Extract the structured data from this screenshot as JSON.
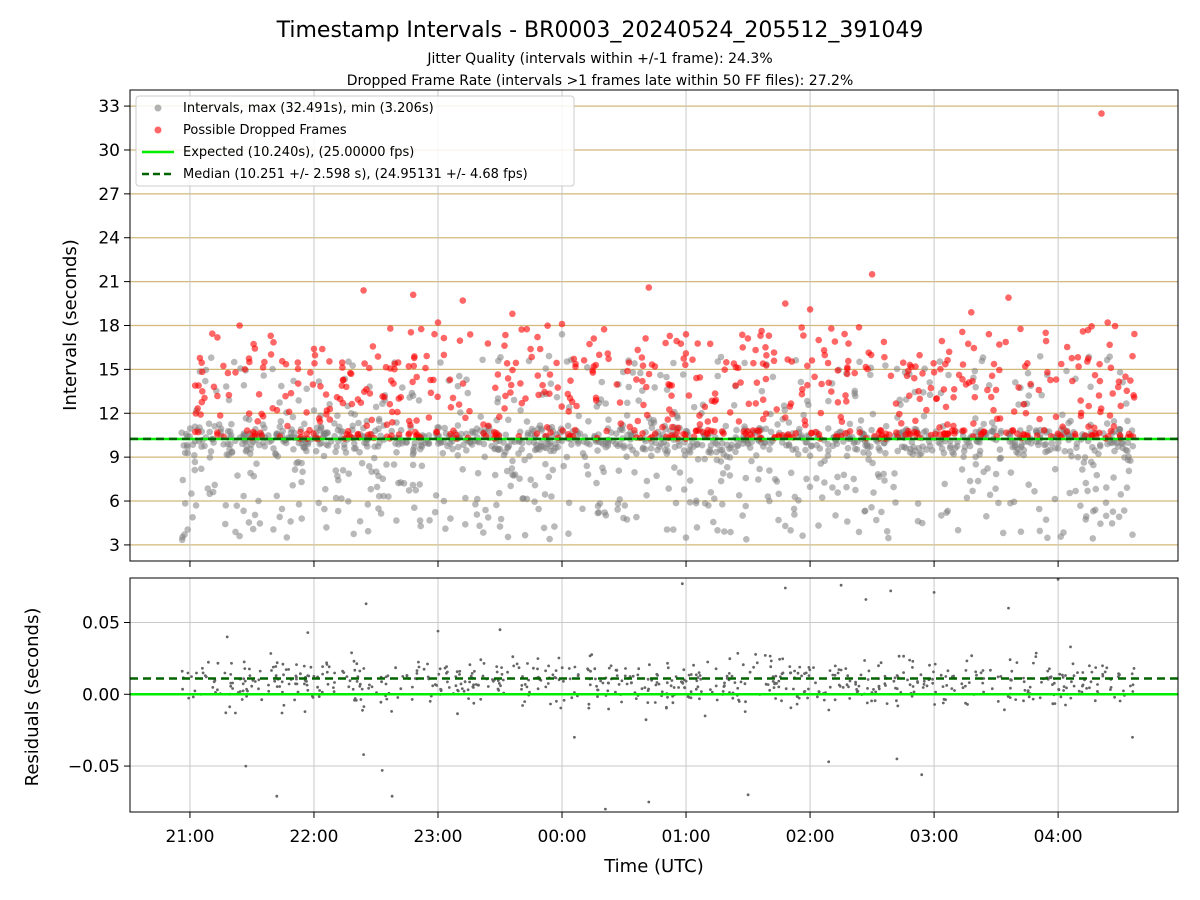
{
  "title": "Timestamp Intervals - BR0003_20240524_205512_391049",
  "subtitle_1": "Jitter Quality (intervals within +/-1 frame): 24.3%",
  "subtitle_2": "Dropped Frame Rate (intervals >1 frames late within 50 FF files): 27.2%",
  "colors": {
    "intervals": "#808080",
    "dropped": "#ff0000",
    "expected": "#00ee00",
    "median": "#006400",
    "hgrid": "#d2b97a",
    "grid": "#c8c8c8"
  },
  "chart_data": [
    {
      "type": "scatter",
      "xlabel": "",
      "ylabel": "Intervals (seconds)",
      "ylim": [
        1.9,
        34.1
      ],
      "xlim": [
        "20:31",
        "04:58"
      ],
      "yticks": [
        "3",
        "6",
        "9",
        "12",
        "15",
        "18",
        "21",
        "24",
        "27",
        "30",
        "33"
      ],
      "grid": true,
      "legend_position": "top-left",
      "legend": [
        "Intervals, max (32.491s), min (3.206s)",
        "Possible Dropped Frames",
        "Expected (10.240s), (25.00000 fps)",
        "Median (10.251 +/- 2.598 s), (24.95131 +/- 4.68 fps)"
      ],
      "series": [
        {
          "name": "Intervals, max (32.491s), min (3.206s)",
          "marker": "circle",
          "time_range": [
            "20:56",
            "04:37"
          ],
          "max": 32.491,
          "min": 3.206,
          "values_approx": [
            [
              20.95,
              9.8
            ],
            [
              21.05,
              5.7
            ],
            [
              21.2,
              7.1
            ],
            [
              21.4,
              3.6
            ],
            [
              21.6,
              11.0
            ],
            [
              21.9,
              8.6
            ],
            [
              22.1,
              4.2
            ],
            [
              22.3,
              12.0
            ],
            [
              22.6,
              6.3
            ],
            [
              22.8,
              9.5
            ],
            [
              23.1,
              4.8
            ],
            [
              23.3,
              10.7
            ],
            [
              23.6,
              7.8
            ],
            [
              23.9,
              3.4
            ],
            [
              24.0,
              17.4
            ],
            [
              24.2,
              8.4
            ],
            [
              24.6,
              4.9
            ],
            [
              24.9,
              10.2
            ],
            [
              25.0,
              3.5
            ],
            [
              25.2,
              6.6
            ],
            [
              25.5,
              9.9
            ],
            [
              25.8,
              4.3
            ],
            [
              26.0,
              9.1
            ],
            [
              26.3,
              4.6
            ],
            [
              26.6,
              7.4
            ],
            [
              26.9,
              10.3
            ],
            [
              27.1,
              5.2
            ],
            [
              27.4,
              8.0
            ],
            [
              27.7,
              3.9
            ],
            [
              28.0,
              9.6
            ],
            [
              28.3,
              5.4
            ],
            [
              28.5,
              10.9
            ],
            [
              28.6,
              3.7
            ],
            [
              28.5,
              14.8
            ]
          ]
        },
        {
          "name": "Possible Dropped Frames",
          "marker": "circle",
          "values_approx": [
            [
              21.1,
              13.5
            ],
            [
              21.4,
              18.0
            ],
            [
              21.6,
              15.5
            ],
            [
              21.8,
              12.1
            ],
            [
              22.0,
              16.4
            ],
            [
              22.3,
              14.7
            ],
            [
              22.4,
              20.4
            ],
            [
              22.7,
              13.1
            ],
            [
              22.8,
              20.1
            ],
            [
              23.0,
              18.2
            ],
            [
              23.2,
              19.7
            ],
            [
              23.6,
              18.8
            ],
            [
              24.0,
              18.1
            ],
            [
              24.3,
              16.0
            ],
            [
              24.6,
              14.3
            ],
            [
              24.7,
              20.6
            ],
            [
              25.0,
              17.4
            ],
            [
              25.4,
              13.9
            ],
            [
              25.6,
              17.3
            ],
            [
              25.8,
              19.5
            ],
            [
              26.0,
              19.1
            ],
            [
              26.2,
              16.9
            ],
            [
              26.5,
              21.5
            ],
            [
              26.8,
              13.2
            ],
            [
              27.0,
              14.8
            ],
            [
              27.3,
              18.9
            ],
            [
              27.5,
              13.6
            ],
            [
              27.6,
              19.9
            ],
            [
              27.9,
              17.5
            ],
            [
              28.2,
              17.6
            ],
            [
              28.4,
              18.2
            ],
            [
              28.6,
              15.9
            ],
            [
              28.35,
              32.491
            ],
            [
              28.5,
              10.3
            ]
          ]
        },
        {
          "name": "Expected (10.240s), (25.00000 fps)",
          "line": "solid",
          "value": 10.24
        },
        {
          "name": "Median (10.251 +/- 2.598 s), (24.95131 +/- 4.68 fps)",
          "line": "dashed",
          "value": 10.251
        }
      ]
    },
    {
      "type": "scatter",
      "xlabel": "Time (UTC)",
      "ylabel": "Residuals (seconds)",
      "ylim": [
        -0.082,
        0.081
      ],
      "yticks": [
        "0.05",
        "0.00",
        "−0.05"
      ],
      "xticks": [
        "21:00",
        "22:00",
        "23:00",
        "00:00",
        "01:00",
        "02:00",
        "03:00",
        "04:00"
      ],
      "grid": true,
      "series": [
        {
          "name": "",
          "marker": "point",
          "values_approx": [
            [
              21.3,
              0.04
            ],
            [
              21.45,
              -0.05
            ],
            [
              21.7,
              -0.071
            ],
            [
              21.95,
              0.043
            ],
            [
              22.4,
              -0.042
            ],
            [
              22.42,
              0.063
            ],
            [
              22.55,
              -0.053
            ],
            [
              22.63,
              -0.071
            ],
            [
              23.0,
              0.044
            ],
            [
              23.5,
              0.045
            ],
            [
              24.1,
              -0.03
            ],
            [
              24.35,
              -0.08
            ],
            [
              24.7,
              -0.075
            ],
            [
              24.97,
              0.077
            ],
            [
              25.5,
              -0.07
            ],
            [
              25.8,
              0.074
            ],
            [
              26.15,
              -0.047
            ],
            [
              26.25,
              0.076
            ],
            [
              26.45,
              0.066
            ],
            [
              26.65,
              0.072
            ],
            [
              26.7,
              -0.045
            ],
            [
              26.9,
              -0.056
            ],
            [
              27.0,
              0.071
            ],
            [
              27.6,
              0.06
            ],
            [
              28.0,
              0.08
            ],
            [
              28.1,
              0.033
            ],
            [
              28.6,
              -0.03
            ]
          ]
        },
        {
          "name": "",
          "line": "solid",
          "value": 0.0
        },
        {
          "name": "",
          "line": "dashed",
          "value": 0.011
        }
      ]
    }
  ]
}
